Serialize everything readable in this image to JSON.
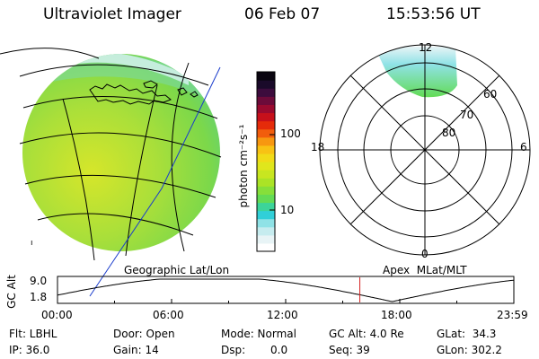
{
  "header": {
    "instrument": "Ultraviolet Imager",
    "date": "06 Feb 07",
    "time": "15:53:56 UT"
  },
  "colorbar": {
    "unit_label": "photon cm⁻²s⁻¹",
    "ticks": [
      "100",
      "10"
    ],
    "colors": [
      "#ffffff",
      "#e8f4f6",
      "#c6ecef",
      "#8fe2e6",
      "#31cfd8",
      "#3cd49a",
      "#63db55",
      "#86df3a",
      "#abe326",
      "#c8e620",
      "#e0e61c",
      "#f1db18",
      "#f8c214",
      "#f79710",
      "#f15d0c",
      "#e52b0a",
      "#c7101b",
      "#9a0a2f",
      "#6c0b3a",
      "#3c0c3d",
      "#1a0a2a",
      "#0a0510"
    ]
  },
  "polar_plot": {
    "mlt_labels": {
      "top": "12",
      "left": "18",
      "right": "6",
      "bottom": "0"
    },
    "lat_labels": [
      "60",
      "70",
      "80"
    ]
  },
  "projection_labels": {
    "left": "Geographic Lat/Lon",
    "right": "Apex  MLat/MLT"
  },
  "altitude_panel": {
    "y_label": "GC Alt",
    "y_ticks": [
      "9.0",
      "1.8"
    ],
    "x_ticks": [
      "00:00",
      "06:00",
      "12:00",
      "18:00",
      "23:59"
    ],
    "current_time_marker_hours": 15.9
  },
  "info": {
    "filter": "Flt: LBHL",
    "ip": "IP: 36.0",
    "door": "Door: Open",
    "gain": "Gain: 14",
    "mode": "Mode: Normal",
    "dsp_label": "Dsp:",
    "dsp_value": "0.0",
    "gc_alt": "GC Alt: 4.0 Re",
    "seq": "Seq: 39",
    "glat": "GLat:  34.3",
    "glon": "GLon: 302.2"
  },
  "colors": {
    "globe_fill": "#9ddc3c",
    "globe_edge": "#6fd6a0",
    "aurora": "#70e0c8",
    "marker": "#d42020"
  }
}
